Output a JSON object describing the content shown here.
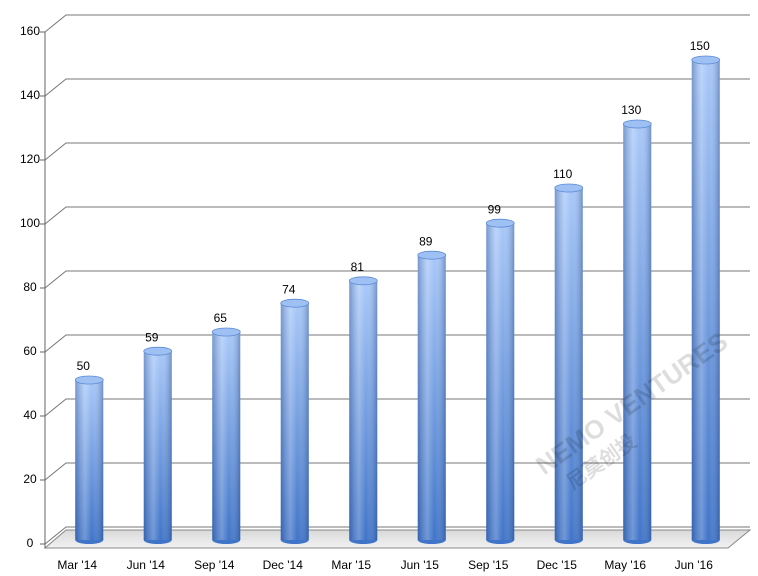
{
  "chart_data": {
    "type": "bar",
    "categories": [
      "Mar '14",
      "Jun '14",
      "Sep '14",
      "Dec '14",
      "Mar '15",
      "Jun '15",
      "Sep '15",
      "Dec '15",
      "May '16",
      "Jun '16"
    ],
    "values": [
      50,
      59,
      65,
      74,
      81,
      89,
      99,
      110,
      130,
      150
    ],
    "color": "#4a7fd4",
    "ylim": [
      0,
      160
    ],
    "yticks": [
      0,
      20,
      40,
      60,
      80,
      100,
      120,
      140,
      160
    ],
    "grid": true,
    "watermark": "NEMO VENTURES",
    "watermark_cn": "尼莫创投"
  }
}
